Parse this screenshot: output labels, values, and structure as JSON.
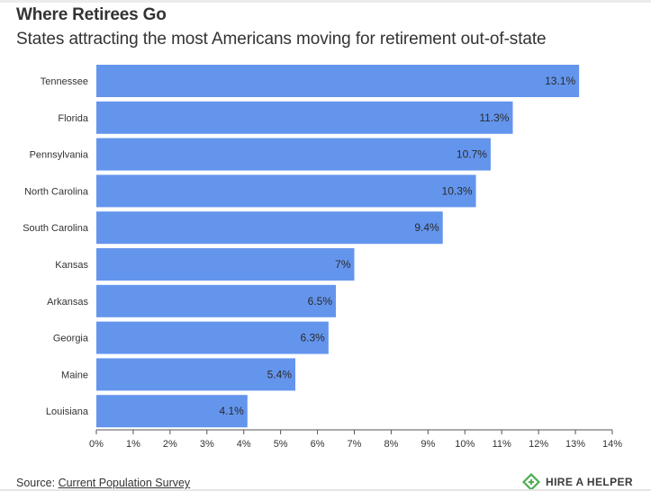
{
  "header": {
    "title": "Where Retirees Go",
    "subtitle": "States attracting the most Americans moving for retirement out-of-state"
  },
  "footer": {
    "source_prefix": "Source:",
    "source_link": "Current Population Survey",
    "brand": "HIRE A HELPER",
    "brand_icon": "hire-a-helper-logo-icon"
  },
  "colors": {
    "bar": "#6495ed",
    "label_text": "#333333"
  },
  "chart_data": {
    "type": "bar",
    "orientation": "horizontal",
    "categories": [
      "Tennessee",
      "Florida",
      "Pennsylvania",
      "North Carolina",
      "South Carolina",
      "Kansas",
      "Arkansas",
      "Georgia",
      "Maine",
      "Louisiana"
    ],
    "values": [
      13.1,
      11.3,
      10.7,
      10.3,
      9.4,
      7,
      6.5,
      6.3,
      5.4,
      4.1
    ],
    "value_labels": [
      "13.1%",
      "11.3%",
      "10.7%",
      "10.3%",
      "9.4%",
      "7%",
      "6.5%",
      "6.3%",
      "5.4%",
      "4.1%"
    ],
    "xlim": [
      0,
      14
    ],
    "x_ticks": [
      "0%",
      "1%",
      "2%",
      "3%",
      "4%",
      "5%",
      "6%",
      "7%",
      "8%",
      "9%",
      "10%",
      "11%",
      "12%",
      "13%",
      "14%"
    ],
    "grid": false
  }
}
